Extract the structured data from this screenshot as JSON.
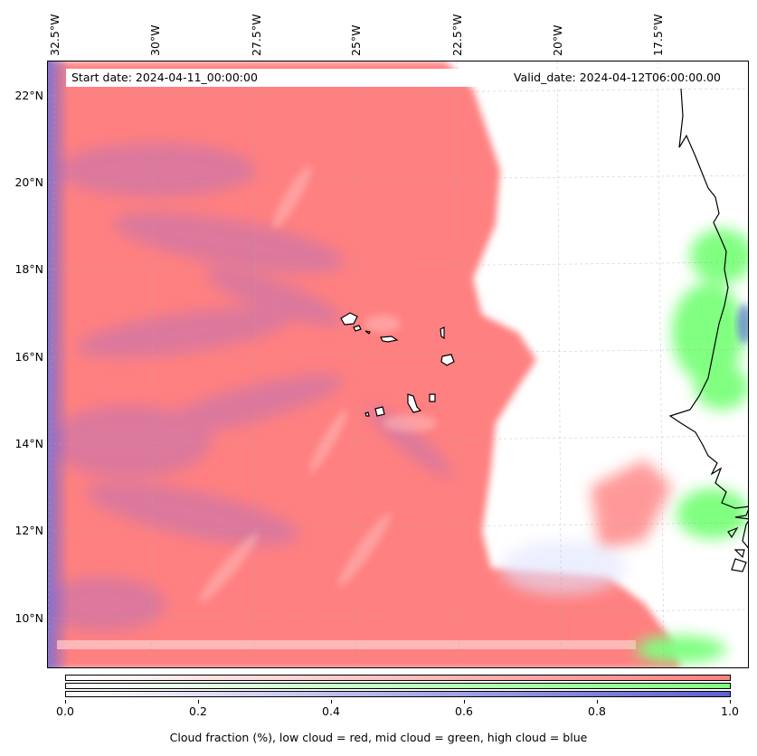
{
  "map": {
    "start_label": "Start date: 2024-04-11_00:00:00",
    "valid_label": "Valid_date: 2024-04-12T06:00:00.00",
    "lon_labels": [
      "32.5°W",
      "30°W",
      "27.5°W",
      "25°W",
      "22.5°W",
      "20°W",
      "17.5°W"
    ],
    "lat_labels": [
      "22°N",
      "20°N",
      "18°N",
      "16°N",
      "14°N",
      "12°N",
      "10°N"
    ],
    "colors": {
      "low_cloud": "#ff8080",
      "mid_cloud": "#80ff80",
      "high_cloud": "#6060d0",
      "coastline": "#000000"
    }
  },
  "colorbar": {
    "ticks": [
      "0.0",
      "0.2",
      "0.4",
      "0.6",
      "0.8",
      "1.0"
    ],
    "caption": "Cloud fraction (%), low cloud = red, mid cloud = green, high cloud = blue"
  }
}
